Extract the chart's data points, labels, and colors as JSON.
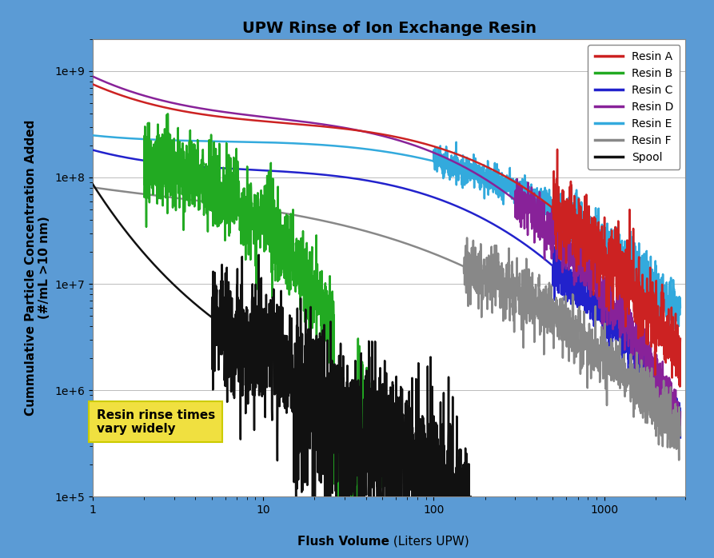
{
  "title": "UPW Rinse of Ion Exchange Resin",
  "xlabel_bold": "Flush Volume",
  "xlabel_normal": " (Liters UPW)",
  "ylabel_line1": "Cummulative Particle Concentration Added",
  "ylabel_line2": "(#/mL >10 nm)",
  "annotation_text": "Resin rinse times\nvary widely",
  "annotation_box_color": "#F0E040",
  "xlim": [
    1,
    3000
  ],
  "ylim": [
    100000.0,
    2000000000.0
  ],
  "series": [
    {
      "name": "Resin A",
      "color": "#CC2222",
      "lw": 1.8
    },
    {
      "name": "Resin B",
      "color": "#22AA22",
      "lw": 1.8
    },
    {
      "name": "Resin C",
      "color": "#2222CC",
      "lw": 1.8
    },
    {
      "name": "Resin D",
      "color": "#882299",
      "lw": 1.8
    },
    {
      "name": "Resin E",
      "color": "#33AADD",
      "lw": 1.8
    },
    {
      "name": "Resin F",
      "color": "#888888",
      "lw": 1.8
    },
    {
      "name": "Spool",
      "color": "#111111",
      "lw": 1.8
    }
  ],
  "background_color": "#FFFFFF",
  "outer_border_color": "#5B9BD5",
  "grid_color": "#BBBBBB",
  "title_fontsize": 14,
  "axis_label_fontsize": 11,
  "tick_fontsize": 10,
  "legend_fontsize": 10
}
